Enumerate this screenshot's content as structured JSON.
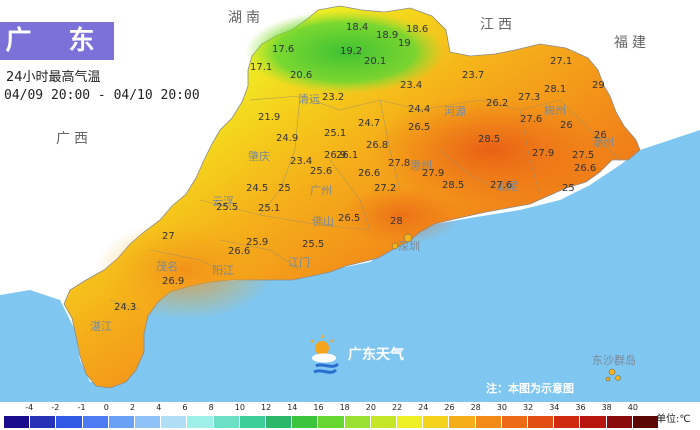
{
  "header": {
    "title": "广 东",
    "subtitle": "24小时最高气温",
    "period": "04/09 20:00 - 04/10 20:00"
  },
  "regions": {
    "hunan": "湖南",
    "jiangxi": "江西",
    "fujian": "福建",
    "guangxi": "广西"
  },
  "cities": [
    "清远",
    "河源",
    "梅州",
    "潮州",
    "肇庆",
    "广州",
    "惠州",
    "汕尾",
    "云浮",
    "佛山",
    "江门",
    "深圳",
    "阳江",
    "茂名",
    "湛江",
    "东沙群岛"
  ],
  "temperatures": [
    "18.4",
    "18.6",
    "18.9",
    "19",
    "19.2",
    "20.1",
    "17.6",
    "17.1",
    "20.6",
    "23.2",
    "23.7",
    "23.4",
    "27.1",
    "27.3",
    "28.1",
    "29",
    "21.9",
    "24.9",
    "25.1",
    "24.7",
    "24.4",
    "26.5",
    "26.2",
    "27.6",
    "26",
    "26",
    "26.9",
    "28.5",
    "27.9",
    "26.1",
    "26.8",
    "23.4",
    "25.6",
    "26.6",
    "27.8",
    "27.9",
    "28.5",
    "27.2",
    "27.5",
    "26.6",
    "24.5",
    "25",
    "25.5",
    "25.1",
    "26.5",
    "28",
    "27.6",
    "25",
    "27",
    "25.9",
    "26.6",
    "25.5",
    "26.9",
    "24.3"
  ],
  "brand": "广东天气",
  "note": "注：本图为示意图",
  "legend": {
    "ticks": [
      "-4",
      "-2",
      "-1",
      "0",
      "2",
      "4",
      "6",
      "8",
      "10",
      "12",
      "14",
      "16",
      "18",
      "20",
      "22",
      "24",
      "26",
      "28",
      "30",
      "32",
      "34",
      "36",
      "38",
      "40"
    ],
    "colors": [
      "#1a0d8c",
      "#2633b8",
      "#3059e6",
      "#4d7cf2",
      "#6aa0f5",
      "#8fc2f7",
      "#b0def5",
      "#9ff0e8",
      "#6be0c4",
      "#3ccf9a",
      "#2cb86a",
      "#3cc43c",
      "#66d633",
      "#99e033",
      "#c4e626",
      "#eef026",
      "#f5d21c",
      "#f5ae1a",
      "#f28a19",
      "#ed6a17",
      "#e34e14",
      "#d02a10",
      "#b8150e",
      "#8a0b0b",
      "#5c0606"
    ],
    "unit": "单位:℃"
  },
  "colors": {
    "sea": "#7fc6f0",
    "land_outside": "#ffffff",
    "title_bg": "#7b71d8"
  }
}
